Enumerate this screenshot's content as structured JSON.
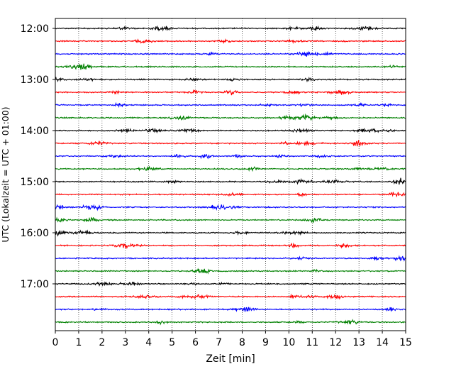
{
  "chart_data": {
    "type": "line",
    "chart_kind": "helicorder (seismogram drum plot)",
    "xlabel": "Zeit  [min]",
    "ylabel": "UTC (Lokalzeit = UTC + 01:00)",
    "xlim": [
      0,
      15
    ],
    "x_ticks": [
      0,
      1,
      2,
      3,
      4,
      5,
      6,
      7,
      8,
      9,
      10,
      11,
      12,
      13,
      14,
      15
    ],
    "x_tick_labels": [
      "0",
      "1",
      "2",
      "3",
      "4",
      "5",
      "6",
      "7",
      "8",
      "9",
      "10",
      "11",
      "12",
      "13",
      "14",
      "15"
    ],
    "y_tick_labels": [
      "12:00",
      "13:00",
      "14:00",
      "15:00",
      "16:00",
      "17:00"
    ],
    "vertical_grid": "dotted, at each minute",
    "minutes_per_trace": 15,
    "trace_color_cycle": [
      "#000000",
      "#ff0000",
      "#0000ff",
      "#008000"
    ],
    "traces": [
      {
        "start": "12:00",
        "color": "#000000"
      },
      {
        "start": "12:15",
        "color": "#ff0000"
      },
      {
        "start": "12:30",
        "color": "#0000ff"
      },
      {
        "start": "12:45",
        "color": "#008000"
      },
      {
        "start": "13:00",
        "color": "#000000"
      },
      {
        "start": "13:15",
        "color": "#ff0000"
      },
      {
        "start": "13:30",
        "color": "#0000ff"
      },
      {
        "start": "13:45",
        "color": "#008000"
      },
      {
        "start": "14:00",
        "color": "#000000"
      },
      {
        "start": "14:15",
        "color": "#ff0000"
      },
      {
        "start": "14:30",
        "color": "#0000ff"
      },
      {
        "start": "14:45",
        "color": "#008000"
      },
      {
        "start": "15:00",
        "color": "#000000"
      },
      {
        "start": "15:15",
        "color": "#ff0000"
      },
      {
        "start": "15:30",
        "color": "#0000ff"
      },
      {
        "start": "15:45",
        "color": "#008000"
      },
      {
        "start": "16:00",
        "color": "#000000"
      },
      {
        "start": "16:15",
        "color": "#ff0000"
      },
      {
        "start": "16:30",
        "color": "#0000ff"
      },
      {
        "start": "16:45",
        "color": "#008000"
      },
      {
        "start": "17:00",
        "color": "#000000"
      },
      {
        "start": "17:15",
        "color": "#ff0000"
      },
      {
        "start": "17:30",
        "color": "#0000ff"
      },
      {
        "start": "17:45",
        "color": "#008000"
      }
    ]
  }
}
